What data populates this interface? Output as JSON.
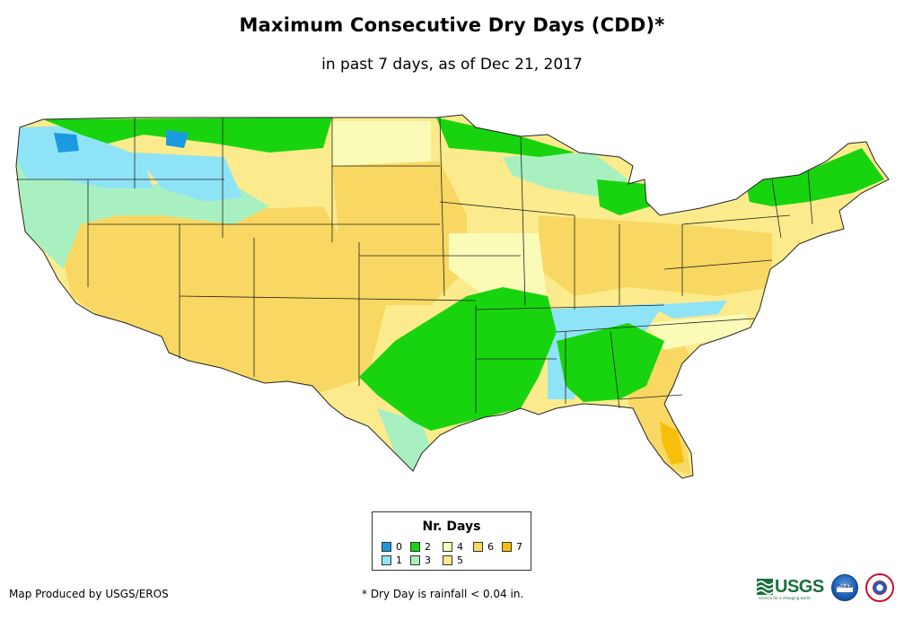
{
  "title": "Maximum Consecutive Dry Days (CDD)*",
  "subtitle": "in past 7 days, as of Dec 21, 2017",
  "legend": {
    "title": "Nr. Days",
    "items": [
      {
        "label": "0",
        "color": "#1a9be0"
      },
      {
        "label": "1",
        "color": "#8fe3f6"
      },
      {
        "label": "2",
        "color": "#18d40f"
      },
      {
        "label": "3",
        "color": "#a9f0c1"
      },
      {
        "label": "4",
        "color": "#fbfbb8"
      },
      {
        "label": "5",
        "color": "#fceb8c"
      },
      {
        "label": "6",
        "color": "#f8d862"
      },
      {
        "label": "7",
        "color": "#f7bf0c"
      }
    ]
  },
  "credit": "Map Produced by USGS/EROS",
  "footnote": "* Dry Day is rainfall < 0.04 in.",
  "logos": {
    "usgs": "USGS",
    "usgs_tagline": "science for a changing world",
    "noaa": "noaa"
  },
  "map": {
    "region": "Contiguous United States",
    "outline_color": "#222222"
  }
}
